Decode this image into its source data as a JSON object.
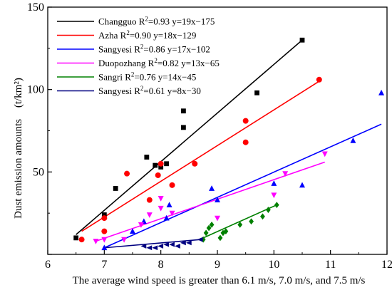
{
  "chart_data": {
    "type": "scatter",
    "xlabel": "The average wind speed is greater than 6.1 m/s, 7.0 m/s, and 7.5 m/s",
    "ylabel": "Dust emission amounts (t/km²)",
    "ylabel_main": "Dust emission amounts",
    "ylabel_unit": "(t/km²)",
    "xlim": [
      6,
      12
    ],
    "ylim": [
      0,
      150
    ],
    "xticks": [
      6,
      7,
      8,
      9,
      10,
      11,
      12
    ],
    "yticks": [
      0,
      50,
      100,
      150
    ],
    "xtick_labels": [
      "6",
      "7",
      "8",
      "9",
      "10",
      "11",
      "12"
    ],
    "ytick_labels": [
      "",
      "50",
      "100",
      "150"
    ],
    "grid": false,
    "legend_position": "top-left",
    "series": [
      {
        "name": "Changguo",
        "legend": "Changguo  R²=0.93  y=19x−175",
        "color": "#000000",
        "marker": "square",
        "points": [
          [
            6.5,
            10
          ],
          [
            7.0,
            24
          ],
          [
            7.2,
            40
          ],
          [
            7.75,
            59
          ],
          [
            7.9,
            54
          ],
          [
            8.0,
            53
          ],
          [
            8.1,
            55
          ],
          [
            8.4,
            87
          ],
          [
            8.4,
            77
          ],
          [
            9.7,
            98
          ],
          [
            10.5,
            130
          ]
        ],
        "fit": [
          [
            6.5,
            12
          ],
          [
            10.5,
            130
          ]
        ]
      },
      {
        "name": "Azha",
        "legend": "Azha  R²=0.90  y=18x−129",
        "color": "#ff0000",
        "marker": "circle",
        "points": [
          [
            6.6,
            9
          ],
          [
            7.0,
            14
          ],
          [
            7.0,
            22
          ],
          [
            7.4,
            49
          ],
          [
            7.8,
            33
          ],
          [
            7.95,
            48
          ],
          [
            8.0,
            55
          ],
          [
            8.2,
            42
          ],
          [
            8.6,
            55
          ],
          [
            9.5,
            81
          ],
          [
            9.5,
            68
          ],
          [
            10.8,
            106
          ]
        ],
        "fit": [
          [
            6.6,
            14
          ],
          [
            10.8,
            105
          ]
        ]
      },
      {
        "name": "Sangyesi",
        "legend": "Sangyesi    R²=0.86  y=17x−102",
        "color": "#0000ff",
        "marker": "triangle-up",
        "points": [
          [
            7.0,
            4
          ],
          [
            7.5,
            14
          ],
          [
            7.7,
            20
          ],
          [
            8.1,
            22
          ],
          [
            8.15,
            30
          ],
          [
            8.9,
            40
          ],
          [
            9.0,
            33
          ],
          [
            10.0,
            43
          ],
          [
            10.5,
            42
          ],
          [
            11.4,
            69
          ],
          [
            11.9,
            98
          ]
        ],
        "fit": [
          [
            7.0,
            4
          ],
          [
            11.9,
            79
          ]
        ]
      },
      {
        "name": "Duopozhang",
        "legend": "Duopozhang    R²=0.82  y=13x−65",
        "color": "#ff00ff",
        "marker": "triangle-down",
        "points": [
          [
            6.85,
            8
          ],
          [
            7.0,
            9
          ],
          [
            7.35,
            9
          ],
          [
            7.65,
            18
          ],
          [
            7.8,
            24
          ],
          [
            8.0,
            34
          ],
          [
            8.0,
            28
          ],
          [
            8.2,
            25
          ],
          [
            9.0,
            22
          ],
          [
            10.0,
            36
          ],
          [
            10.2,
            49
          ],
          [
            10.9,
            61
          ]
        ],
        "fit": [
          [
            6.85,
            8
          ],
          [
            10.9,
            56
          ]
        ]
      },
      {
        "name": "Sangri",
        "legend": "Sangri  R²=0.76  y=14x−45",
        "color": "#008000",
        "marker": "diamond",
        "points": [
          [
            8.75,
            9
          ],
          [
            8.8,
            13
          ],
          [
            8.85,
            16
          ],
          [
            8.9,
            18
          ],
          [
            9.05,
            10
          ],
          [
            9.1,
            13
          ],
          [
            9.15,
            14
          ],
          [
            9.4,
            18
          ],
          [
            9.6,
            20
          ],
          [
            9.8,
            23
          ],
          [
            9.9,
            27
          ],
          [
            10.05,
            30
          ]
        ],
        "fit": [
          [
            8.75,
            10
          ],
          [
            10.05,
            30
          ]
        ]
      },
      {
        "name": "Sangyesi",
        "legend": "Sangyesi  R²=0.61  y=8x−30",
        "color": "#000080",
        "marker": "arrow",
        "points": [
          [
            7.7,
            5
          ],
          [
            7.8,
            4
          ],
          [
            7.9,
            4
          ],
          [
            8.0,
            5
          ],
          [
            8.1,
            6
          ],
          [
            8.2,
            6
          ],
          [
            8.3,
            5
          ],
          [
            8.4,
            7
          ],
          [
            8.5,
            7
          ],
          [
            8.7,
            9
          ]
        ],
        "fit": [
          [
            7.0,
            4
          ],
          [
            8.7,
            9
          ]
        ]
      }
    ]
  }
}
